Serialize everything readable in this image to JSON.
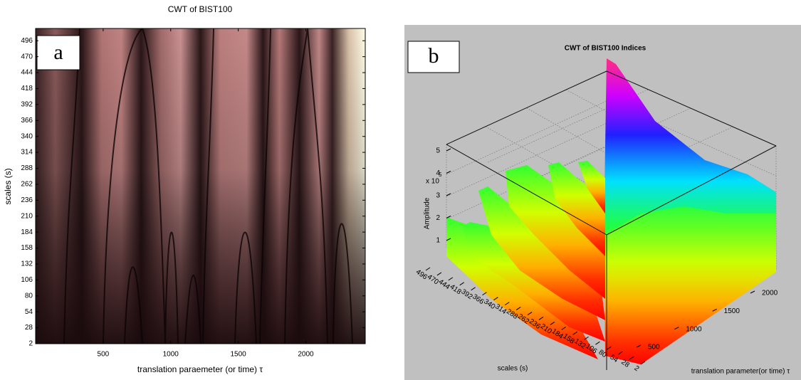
{
  "chart_data": [
    {
      "type": "heatmap",
      "panel_label": "a",
      "title": "CWT of BIST100",
      "xlabel": "translation paraemeter (or time) τ",
      "ylabel": "scales (s)",
      "xlim": [
        0,
        2440
      ],
      "xticks": [
        500,
        1000,
        1500,
        2000
      ],
      "ylim": [
        2,
        516
      ],
      "yticks": [
        2,
        28,
        54,
        80,
        106,
        132,
        158,
        184,
        210,
        236,
        262,
        288,
        314,
        340,
        366,
        392,
        418,
        444,
        470,
        496
      ]
    },
    {
      "type": "surface",
      "panel_label": "b",
      "title": "CWT of BIST100 Indices",
      "xlabel": "translation parameter(or time) τ",
      "ylabel": "scales (s)",
      "zlabel": "Amplitude",
      "zscale": {
        "base": "x 10",
        "exponent": "5"
      },
      "xticks": [
        500,
        1000,
        1500,
        2000
      ],
      "yticks": [
        496,
        470,
        444,
        418,
        392,
        366,
        340,
        314,
        288,
        262,
        236,
        210,
        184,
        158,
        132,
        106,
        80,
        54,
        28,
        2
      ],
      "zticks": [
        1,
        2,
        3,
        4,
        5
      ]
    }
  ]
}
